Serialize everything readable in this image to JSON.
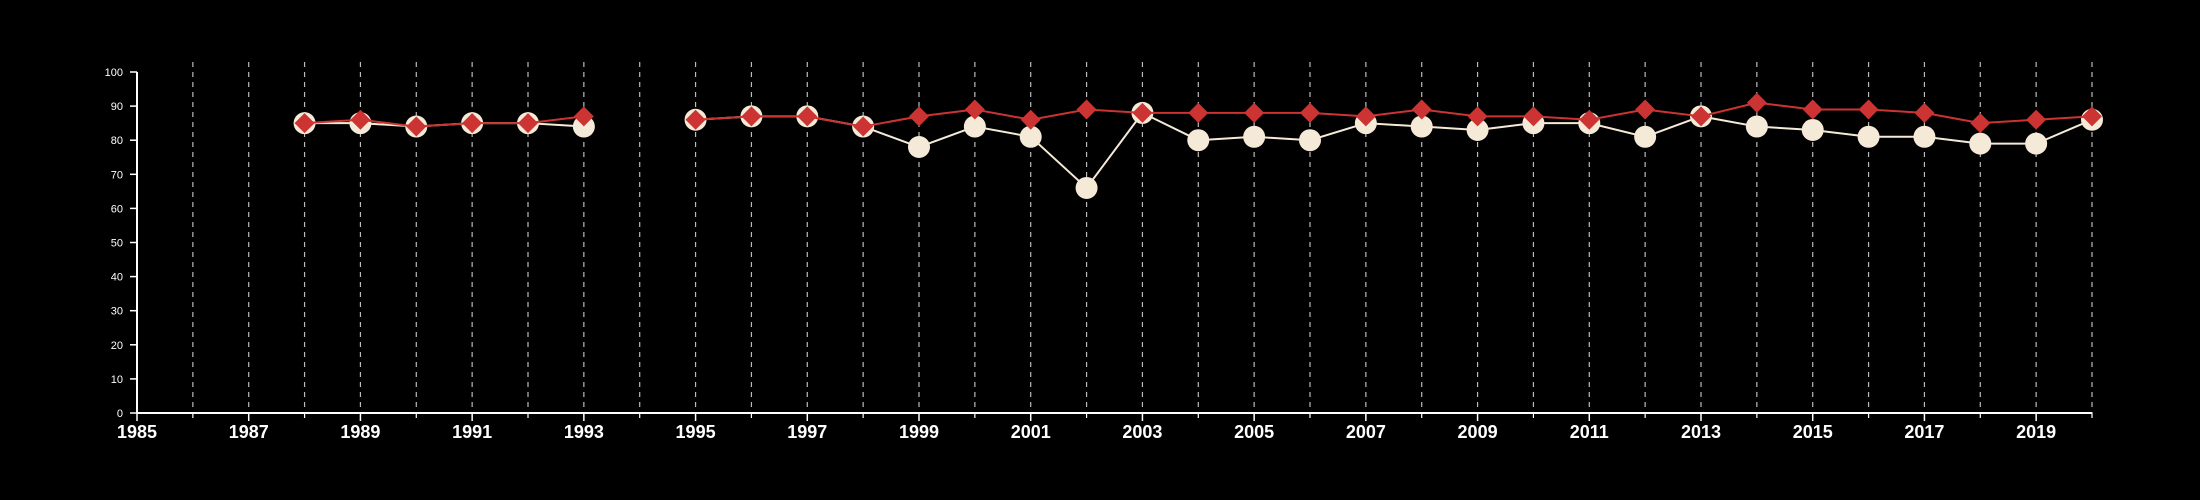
{
  "chart_data": {
    "type": "line",
    "title": "",
    "xlabel": "",
    "ylabel": "",
    "xlim": [
      1985,
      2020
    ],
    "ylim": [
      0,
      100
    ],
    "yticks": [
      0,
      10,
      20,
      30,
      40,
      50,
      60,
      70,
      80,
      90,
      100
    ],
    "xticks": [
      1985,
      1987,
      1989,
      1991,
      1993,
      1995,
      1997,
      1999,
      2001,
      2003,
      2005,
      2007,
      2009,
      2011,
      2013,
      2015,
      2017,
      2019
    ],
    "x_gridlines": "vertical dashed, every year",
    "legend": "none",
    "x": [
      1985,
      1986,
      1987,
      1988,
      1989,
      1990,
      1991,
      1992,
      1993,
      1994,
      1995,
      1996,
      1997,
      1998,
      1999,
      2000,
      2001,
      2002,
      2003,
      2004,
      2005,
      2006,
      2007,
      2008,
      2009,
      2010,
      2011,
      2012,
      2013,
      2014,
      2015,
      2016,
      2017,
      2018,
      2019,
      2020
    ],
    "series": [
      {
        "marker": "circle",
        "color": "#f5ead7",
        "values": [
          null,
          null,
          null,
          85,
          85,
          84,
          85,
          85,
          84,
          null,
          86,
          87,
          87,
          84,
          78,
          84,
          81,
          66,
          88,
          80,
          81,
          80,
          85,
          84,
          83,
          85,
          85,
          81,
          87,
          84,
          83,
          81,
          81,
          79,
          79,
          86
        ]
      },
      {
        "marker": "diamond",
        "color": "#cc3333",
        "values": [
          null,
          null,
          null,
          85,
          86,
          84,
          85,
          85,
          87,
          null,
          86,
          87,
          87,
          84,
          87,
          89,
          86,
          89,
          88,
          88,
          88,
          88,
          87,
          89,
          87,
          87,
          86,
          89,
          87,
          91,
          89,
          89,
          88,
          85,
          86,
          87
        ]
      }
    ]
  }
}
